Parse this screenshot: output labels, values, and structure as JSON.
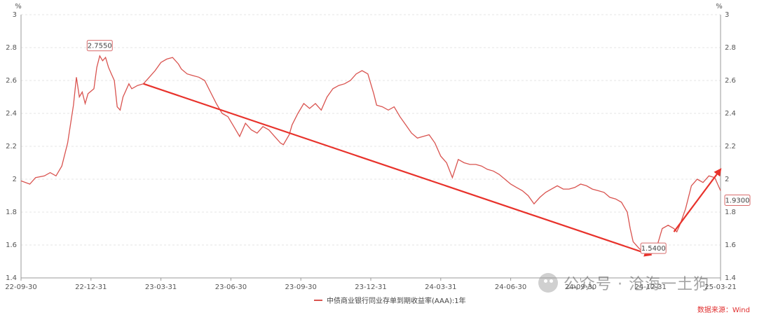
{
  "chart_data": {
    "type": "line",
    "title": "",
    "unit_left": "%",
    "unit_right": "%",
    "ylim": [
      1.4,
      3.0
    ],
    "yticks": [
      "1.4",
      "1.6",
      "1.8",
      "2",
      "2.2",
      "2.4",
      "2.6",
      "2.8",
      "3"
    ],
    "xticks": [
      "22-09-30",
      "22-12-31",
      "23-03-31",
      "23-06-30",
      "23-09-30",
      "23-12-31",
      "24-03-31",
      "24-06-30",
      "24-09-30",
      "24-12-31",
      "25-03-21"
    ],
    "series": [
      {
        "name": "中债商业银行同业存单到期收益率(AAA):1年",
        "color": "#d9534f",
        "points": [
          [
            0,
            1.99
          ],
          [
            3,
            1.97
          ],
          [
            5,
            2.01
          ],
          [
            8,
            2.02
          ],
          [
            10,
            2.04
          ],
          [
            12,
            2.02
          ],
          [
            14,
            2.08
          ],
          [
            16,
            2.22
          ],
          [
            18,
            2.45
          ],
          [
            19,
            2.62
          ],
          [
            20,
            2.5
          ],
          [
            21,
            2.53
          ],
          [
            22,
            2.46
          ],
          [
            23,
            2.52
          ],
          [
            25,
            2.55
          ],
          [
            26,
            2.68
          ],
          [
            27,
            2.75
          ],
          [
            28,
            2.72
          ],
          [
            29,
            2.74
          ],
          [
            30,
            2.68
          ],
          [
            31,
            2.64
          ],
          [
            32,
            2.6
          ],
          [
            33,
            2.44
          ],
          [
            34,
            2.42
          ],
          [
            35,
            2.5
          ],
          [
            36,
            2.54
          ],
          [
            37,
            2.58
          ],
          [
            38,
            2.55
          ],
          [
            40,
            2.57
          ],
          [
            42,
            2.58
          ],
          [
            44,
            2.62
          ],
          [
            46,
            2.66
          ],
          [
            48,
            2.71
          ],
          [
            50,
            2.73
          ],
          [
            52,
            2.74
          ],
          [
            54,
            2.7
          ],
          [
            55,
            2.67
          ],
          [
            57,
            2.64
          ],
          [
            59,
            2.63
          ],
          [
            61,
            2.62
          ],
          [
            63,
            2.6
          ],
          [
            65,
            2.53
          ],
          [
            67,
            2.46
          ],
          [
            69,
            2.4
          ],
          [
            71,
            2.38
          ],
          [
            73,
            2.32
          ],
          [
            75,
            2.26
          ],
          [
            77,
            2.34
          ],
          [
            79,
            2.3
          ],
          [
            81,
            2.28
          ],
          [
            83,
            2.32
          ],
          [
            85,
            2.3
          ],
          [
            87,
            2.26
          ],
          [
            89,
            2.22
          ],
          [
            90,
            2.21
          ],
          [
            92,
            2.27
          ],
          [
            93,
            2.33
          ],
          [
            95,
            2.4
          ],
          [
            97,
            2.46
          ],
          [
            99,
            2.43
          ],
          [
            101,
            2.46
          ],
          [
            103,
            2.42
          ],
          [
            105,
            2.5
          ],
          [
            107,
            2.55
          ],
          [
            109,
            2.57
          ],
          [
            111,
            2.58
          ],
          [
            113,
            2.6
          ],
          [
            115,
            2.64
          ],
          [
            117,
            2.66
          ],
          [
            119,
            2.64
          ],
          [
            120,
            2.58
          ],
          [
            121,
            2.52
          ],
          [
            122,
            2.45
          ],
          [
            124,
            2.44
          ],
          [
            126,
            2.42
          ],
          [
            128,
            2.44
          ],
          [
            130,
            2.38
          ],
          [
            132,
            2.33
          ],
          [
            134,
            2.28
          ],
          [
            136,
            2.25
          ],
          [
            138,
            2.26
          ],
          [
            140,
            2.27
          ],
          [
            142,
            2.22
          ],
          [
            144,
            2.14
          ],
          [
            146,
            2.1
          ],
          [
            148,
            2.01
          ],
          [
            150,
            2.12
          ],
          [
            152,
            2.1
          ],
          [
            154,
            2.09
          ],
          [
            156,
            2.09
          ],
          [
            158,
            2.08
          ],
          [
            160,
            2.06
          ],
          [
            162,
            2.05
          ],
          [
            164,
            2.03
          ],
          [
            166,
            2.0
          ],
          [
            168,
            1.97
          ],
          [
            170,
            1.95
          ],
          [
            172,
            1.93
          ],
          [
            174,
            1.9
          ],
          [
            176,
            1.85
          ],
          [
            178,
            1.89
          ],
          [
            180,
            1.92
          ],
          [
            182,
            1.94
          ],
          [
            184,
            1.96
          ],
          [
            186,
            1.94
          ],
          [
            188,
            1.94
          ],
          [
            190,
            1.95
          ],
          [
            192,
            1.97
          ],
          [
            194,
            1.96
          ],
          [
            196,
            1.94
          ],
          [
            198,
            1.93
          ],
          [
            200,
            1.92
          ],
          [
            202,
            1.89
          ],
          [
            204,
            1.88
          ],
          [
            206,
            1.86
          ],
          [
            208,
            1.8
          ],
          [
            209,
            1.7
          ],
          [
            210,
            1.62
          ],
          [
            212,
            1.58
          ],
          [
            214,
            1.55
          ],
          [
            216,
            1.54
          ],
          [
            218,
            1.58
          ],
          [
            220,
            1.7
          ],
          [
            222,
            1.72
          ],
          [
            224,
            1.7
          ],
          [
            225,
            1.68
          ],
          [
            226,
            1.72
          ],
          [
            228,
            1.82
          ],
          [
            230,
            1.96
          ],
          [
            232,
            2.0
          ],
          [
            234,
            1.98
          ],
          [
            236,
            2.02
          ],
          [
            238,
            2.01
          ],
          [
            240,
            1.93
          ]
        ]
      }
    ],
    "annotations": [
      {
        "text": "2.7550",
        "x": 27,
        "y": 2.755
      },
      {
        "text": "1.5400",
        "x": 216,
        "y": 1.54
      },
      {
        "text": "1.9300",
        "x": 240,
        "y": 1.93
      }
    ],
    "trend_arrows": [
      {
        "from": [
          42,
          2.58
        ],
        "to": [
          216,
          1.54
        ],
        "color": "#e8322b"
      },
      {
        "from": [
          224,
          1.68
        ],
        "to": [
          240,
          2.06
        ],
        "color": "#e8322b"
      }
    ],
    "x_max": 240,
    "grid": true
  },
  "legend": {
    "label": "中债商业银行同业存单到期收益率(AAA):1年"
  },
  "source": "数据来源：Wind",
  "watermark": {
    "text": "公众号 · 沧海一土狗"
  }
}
